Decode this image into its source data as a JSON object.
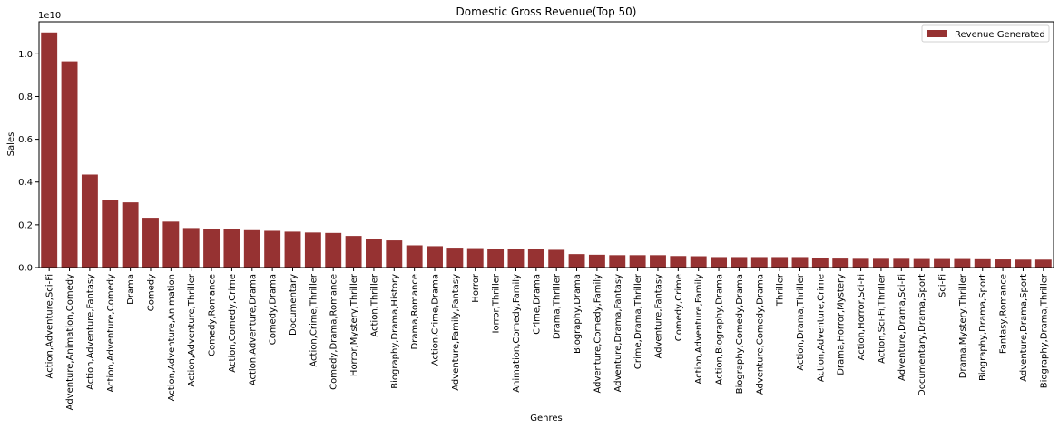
{
  "chart_data": {
    "type": "bar",
    "title": "Domestic Gross Revenue(Top 50)",
    "xlabel": "Genres",
    "ylabel": "Sales",
    "y_offset_label": "1e10",
    "ylim": [
      0,
      1.15
    ],
    "yticks": [
      0.0,
      0.2,
      0.4,
      0.6,
      0.8,
      1.0
    ],
    "ytick_labels": [
      "0.0",
      "0.2",
      "0.4",
      "0.6",
      "0.8",
      "1.0"
    ],
    "grid": false,
    "legend": {
      "placement": "top-right",
      "label": "Revenue Generated"
    },
    "bar_color": "#963232",
    "categories": [
      "Action,Adventure,Sci-Fi",
      "Adventure,Animation,Comedy",
      "Action,Adventure,Fantasy",
      "Action,Adventure,Comedy",
      "Drama",
      "Comedy",
      "Action,Adventure,Animation",
      "Action,Adventure,Thriller",
      "Comedy,Romance",
      "Action,Comedy,Crime",
      "Action,Adventure,Drama",
      "Comedy,Drama",
      "Documentary",
      "Action,Crime,Thriller",
      "Comedy,Drama,Romance",
      "Horror,Mystery,Thriller",
      "Action,Thriller",
      "Biography,Drama,History",
      "Drama,Romance",
      "Action,Crime,Drama",
      "Adventure,Family,Fantasy",
      "Horror",
      "Horror,Thriller",
      "Animation,Comedy,Family",
      "Crime,Drama",
      "Drama,Thriller",
      "Biography,Drama",
      "Adventure,Comedy,Family",
      "Adventure,Drama,Fantasy",
      "Crime,Drama,Thriller",
      "Adventure,Fantasy",
      "Comedy,Crime",
      "Action,Adventure,Family",
      "Action,Biography,Drama",
      "Biography,Comedy,Drama",
      "Adventure,Comedy,Drama",
      "Thriller",
      "Action,Drama,Thriller",
      "Action,Adventure,Crime",
      "Drama,Horror,Mystery",
      "Action,Horror,Sci-Fi",
      "Action,Sci-Fi,Thriller",
      "Adventure,Drama,Sci-Fi",
      "Documentary,Drama,Sport",
      "Sci-Fi",
      "Drama,Mystery,Thriller",
      "Biography,Drama,Sport",
      "Fantasy,Romance",
      "Adventure,Drama,Sport",
      "Biography,Drama,Thriller"
    ],
    "values": [
      1.1,
      0.965,
      0.435,
      0.318,
      0.305,
      0.233,
      0.215,
      0.185,
      0.182,
      0.18,
      0.175,
      0.172,
      0.168,
      0.164,
      0.162,
      0.148,
      0.135,
      0.127,
      0.104,
      0.1,
      0.093,
      0.091,
      0.087,
      0.087,
      0.087,
      0.083,
      0.063,
      0.06,
      0.058,
      0.058,
      0.058,
      0.054,
      0.053,
      0.049,
      0.049,
      0.049,
      0.049,
      0.049,
      0.045,
      0.042,
      0.041,
      0.041,
      0.041,
      0.04,
      0.04,
      0.04,
      0.039,
      0.038,
      0.037,
      0.037
    ]
  }
}
